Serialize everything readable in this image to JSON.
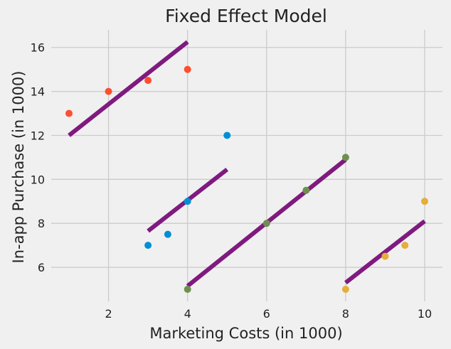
{
  "chart_data": {
    "type": "scatter",
    "title": "Fixed Effect Model",
    "xlabel": "Marketing Costs (in 1000)",
    "ylabel": "In-app Purchase (in 1000)",
    "xlim": [
      0.55,
      10.45
    ],
    "ylim": [
      4.45,
      16.8
    ],
    "xticks": [
      2,
      4,
      6,
      8,
      10
    ],
    "yticks": [
      6,
      8,
      10,
      12,
      14,
      16
    ],
    "grid": true,
    "legend": "none",
    "fit_line_color": "#7f1a7f",
    "series": [
      {
        "color": "#fc4f30",
        "points": [
          [
            1,
            13
          ],
          [
            2,
            14
          ],
          [
            3,
            14.5
          ],
          [
            4,
            15
          ]
        ],
        "fit": [
          [
            1,
            12.0
          ],
          [
            4,
            16.25
          ]
        ]
      },
      {
        "color": "#008fd5",
        "points": [
          [
            3,
            7
          ],
          [
            3.5,
            7.5
          ],
          [
            4,
            9
          ],
          [
            5,
            12
          ]
        ],
        "fit": [
          [
            3,
            7.65
          ],
          [
            5,
            10.45
          ]
        ]
      },
      {
        "color": "#6d904f",
        "points": [
          [
            4,
            5
          ],
          [
            6,
            8
          ],
          [
            7,
            9.5
          ],
          [
            8,
            11
          ]
        ],
        "fit": [
          [
            4,
            5.15
          ],
          [
            8,
            10.9
          ]
        ]
      },
      {
        "color": "#e5ae38",
        "points": [
          [
            8,
            5
          ],
          [
            9,
            6.5
          ],
          [
            9.5,
            7
          ],
          [
            10,
            9
          ]
        ],
        "fit": [
          [
            8,
            5.3
          ],
          [
            10,
            8.1
          ]
        ]
      }
    ]
  }
}
